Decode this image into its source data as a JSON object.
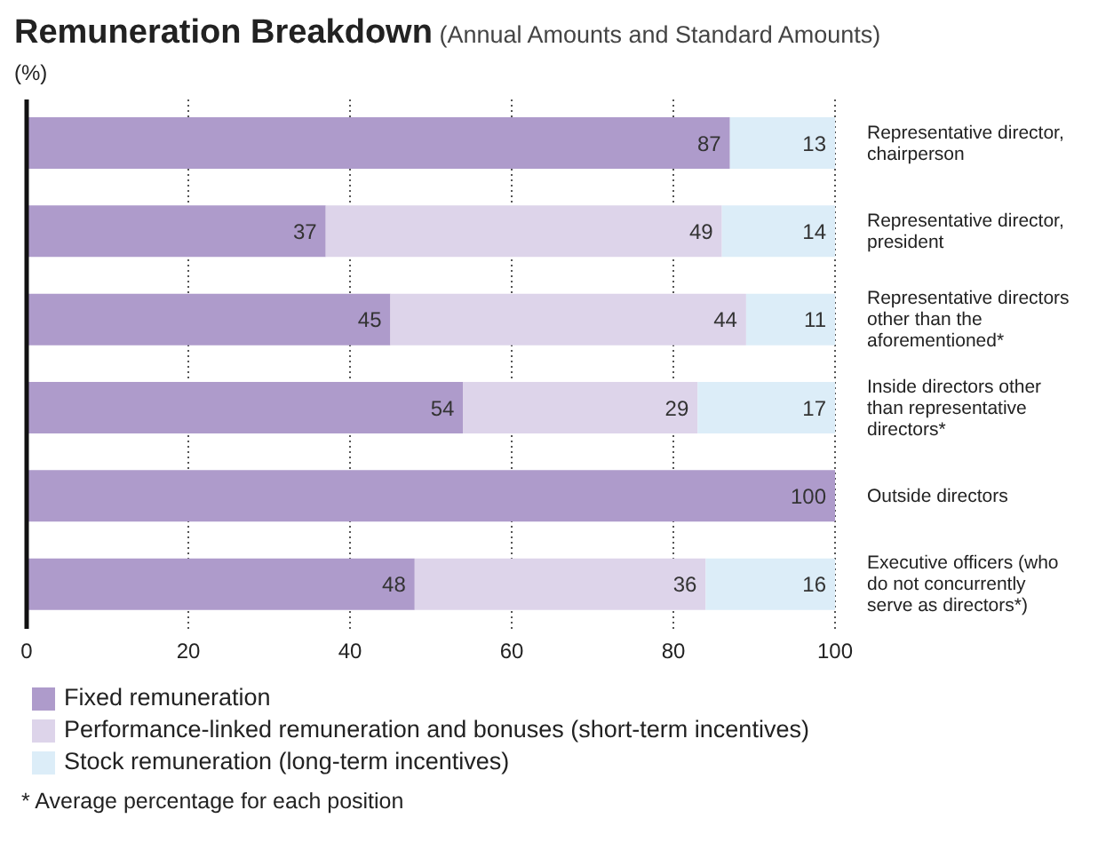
{
  "chart_data": {
    "type": "bar",
    "orientation": "horizontal",
    "stacked": true,
    "title": "Remuneration Breakdown",
    "subtitle": "(Annual Amounts and Standard Amounts)",
    "categories": [
      "Representative director, chairperson",
      "Representative director, president",
      "Representative directors other than the aforementioned*",
      "Inside directors other than representative directors*",
      "Outside directors",
      "Executive officers (who do not concurrently serve as directors*)"
    ],
    "series": [
      {
        "name": "Fixed remuneration",
        "color": "#ae9bcb",
        "values": [
          87,
          37,
          45,
          54,
          100,
          48
        ]
      },
      {
        "name": "Performance-linked remuneration and bonuses (short-term incentives)",
        "color": "#ddd4ea",
        "values": [
          null,
          49,
          44,
          29,
          null,
          36
        ]
      },
      {
        "name": "Stock remuneration (long-term incentives)",
        "color": "#dcedf8",
        "values": [
          13,
          14,
          11,
          17,
          null,
          16
        ]
      }
    ],
    "xlim": [
      0,
      100
    ],
    "xticks": [
      0,
      20,
      40,
      60,
      80,
      100
    ],
    "grid": "x",
    "legend": "bottom",
    "data_labels": true,
    "annotations": [
      "(%)",
      "* Average percentage for each position"
    ]
  }
}
